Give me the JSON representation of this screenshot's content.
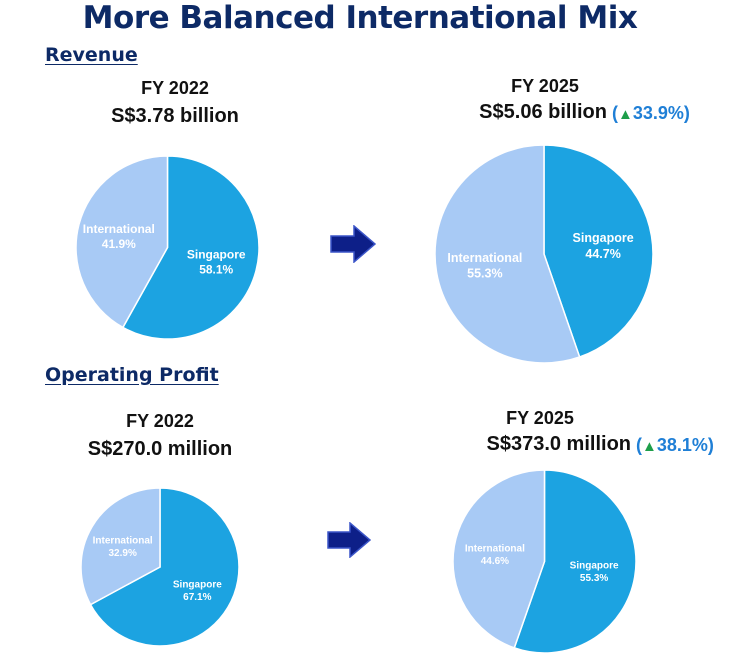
{
  "title": "More Balanced International Mix",
  "sections": {
    "revenue": "Revenue",
    "operating_profit": "Operating Profit"
  },
  "panels": {
    "rev2022": {
      "year": "FY 2022",
      "amount": "S$3.78 billion"
    },
    "rev2025": {
      "year": "FY 2025",
      "amount": "S$5.06 billion",
      "change": "33.9%"
    },
    "op2022": {
      "year": "FY 2022",
      "amount": "S$270.0 million"
    },
    "op2025": {
      "year": "FY 2025",
      "amount": "S$373.0 million",
      "change": "38.1%"
    }
  },
  "colors": {
    "singapore": "#1ca3e1",
    "international": "#a8caf5",
    "title": "#0d2a66",
    "arrow": "#0d1f88",
    "increase": "#1f7fd6",
    "up_triangle": "#1e9e4a"
  },
  "icons": {
    "arrow": "right-arrow-icon",
    "increase": "up-triangle-icon"
  },
  "chart_data": [
    {
      "type": "pie",
      "title": "Revenue FY 2022",
      "slices": [
        {
          "label": "Singapore",
          "value": 58.1,
          "display": "58.1%"
        },
        {
          "label": "International",
          "value": 41.9,
          "display": "41.9%"
        }
      ]
    },
    {
      "type": "pie",
      "title": "Revenue FY 2025",
      "slices": [
        {
          "label": "Singapore",
          "value": 44.7,
          "display": "44.7%"
        },
        {
          "label": "International",
          "value": 55.3,
          "display": "55.3%"
        }
      ]
    },
    {
      "type": "pie",
      "title": "Operating Profit FY 2022",
      "slices": [
        {
          "label": "Singapore",
          "value": 67.1,
          "display": "67.1%"
        },
        {
          "label": "International",
          "value": 32.9,
          "display": "32.9%"
        }
      ]
    },
    {
      "type": "pie",
      "title": "Operating Profit FY 2025",
      "slices": [
        {
          "label": "Singapore",
          "value": 55.3,
          "display": "55.3%"
        },
        {
          "label": "International",
          "value": 44.6,
          "display": "44.6%"
        }
      ]
    }
  ]
}
